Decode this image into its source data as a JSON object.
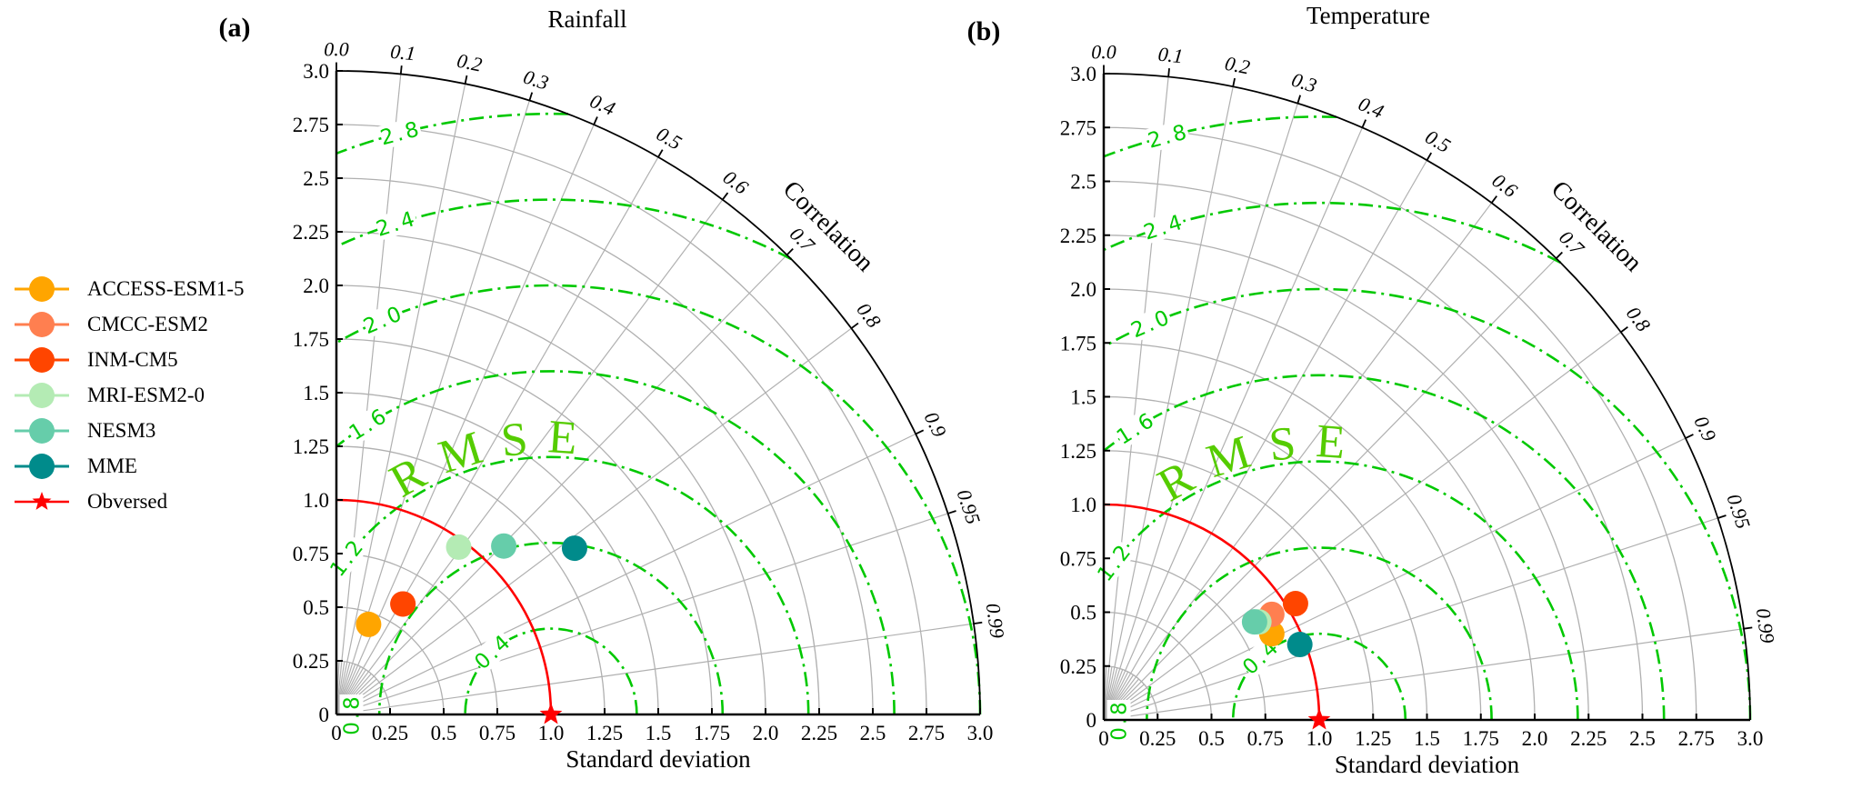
{
  "colors": {
    "rmse_contour": "#00c800",
    "rmse_label": "#55cc00",
    "reference_arc": "#ff0000",
    "grid": "#b0b0b0",
    "axis": "#000000"
  },
  "legend": [
    {
      "name": "ACCESS-ESM1-5",
      "color": "#ffa500",
      "marker": "circle"
    },
    {
      "name": "CMCC-ESM2",
      "color": "#ff7f50",
      "marker": "circle"
    },
    {
      "name": "INM-CM5",
      "color": "#ff4500",
      "marker": "circle"
    },
    {
      "name": "MRI-ESM2-0",
      "color": "#b4ebb4",
      "marker": "circle"
    },
    {
      "name": "NESM3",
      "color": "#66cdaa",
      "marker": "circle"
    },
    {
      "name": "MME",
      "color": "#008b8b",
      "marker": "circle"
    },
    {
      "name": "Obversed",
      "color": "#ff0000",
      "marker": "star"
    }
  ],
  "chart_data": [
    {
      "type": "scatter",
      "panel_label": "(a)",
      "title": "Rainfall",
      "xlabel": "Standard deviation",
      "angular_label": "Correlation",
      "rmse_label": "RMSE",
      "xlim": [
        0,
        3.0
      ],
      "ylim": [
        0,
        3.0
      ],
      "std_ticks": [
        "0",
        "0.25",
        "0.5",
        "0.75",
        "1.0",
        "1.25",
        "1.5",
        "1.75",
        "2.0",
        "2.25",
        "2.5",
        "2.75",
        "3.0"
      ],
      "correlation_ticks": [
        "0.0",
        "0.1",
        "0.2",
        "0.3",
        "0.4",
        "0.5",
        "0.6",
        "0.7",
        "0.8",
        "0.9",
        "0.95",
        "0.99"
      ],
      "rmse_contours": [
        "0.4",
        "0.8",
        "1.2",
        "1.6",
        "2.0",
        "2.4",
        "2.8"
      ],
      "reference_std": 1.0,
      "series": [
        {
          "name": "ACCESS-ESM1-5",
          "x": 0.15,
          "y": 0.42
        },
        {
          "name": "CMCC-ESM2",
          "x": 0.31,
          "y": 0.515
        },
        {
          "name": "INM-CM5",
          "x": 0.31,
          "y": 0.515
        },
        {
          "name": "MRI-ESM2-0",
          "x": 0.57,
          "y": 0.78
        },
        {
          "name": "NESM3",
          "x": 0.78,
          "y": 0.785
        },
        {
          "name": "MME",
          "x": 1.11,
          "y": 0.775
        },
        {
          "name": "Obversed",
          "x": 1.0,
          "y": 0.0
        }
      ]
    },
    {
      "type": "scatter",
      "panel_label": "(b)",
      "title": "Temperature",
      "xlabel": "Standard deviation",
      "angular_label": "Correlation",
      "rmse_label": "RMSE",
      "xlim": [
        0,
        3.0
      ],
      "ylim": [
        0,
        3.0
      ],
      "std_ticks": [
        "0",
        "0.25",
        "0.5",
        "0.75",
        "1.0",
        "1.25",
        "1.5",
        "1.75",
        "2.0",
        "2.25",
        "2.5",
        "2.75",
        "3.0"
      ],
      "correlation_ticks": [
        "0.0",
        "0.1",
        "0.2",
        "0.3",
        "0.4",
        "0.5",
        "0.6",
        "0.7",
        "0.8",
        "0.9",
        "0.95",
        "0.99"
      ],
      "rmse_contours": [
        "0.4",
        "0.8",
        "1.2",
        "1.6",
        "2.0",
        "2.4",
        "2.8"
      ],
      "reference_std": 1.0,
      "series": [
        {
          "name": "ACCESS-ESM1-5",
          "x": 0.78,
          "y": 0.4
        },
        {
          "name": "CMCC-ESM2",
          "x": 0.78,
          "y": 0.49
        },
        {
          "name": "INM-CM5",
          "x": 0.89,
          "y": 0.54
        },
        {
          "name": "MRI-ESM2-0",
          "x": 0.72,
          "y": 0.455
        },
        {
          "name": "NESM3",
          "x": 0.7,
          "y": 0.455
        },
        {
          "name": "MME",
          "x": 0.91,
          "y": 0.35
        },
        {
          "name": "Obversed",
          "x": 1.0,
          "y": 0.0
        }
      ]
    }
  ]
}
